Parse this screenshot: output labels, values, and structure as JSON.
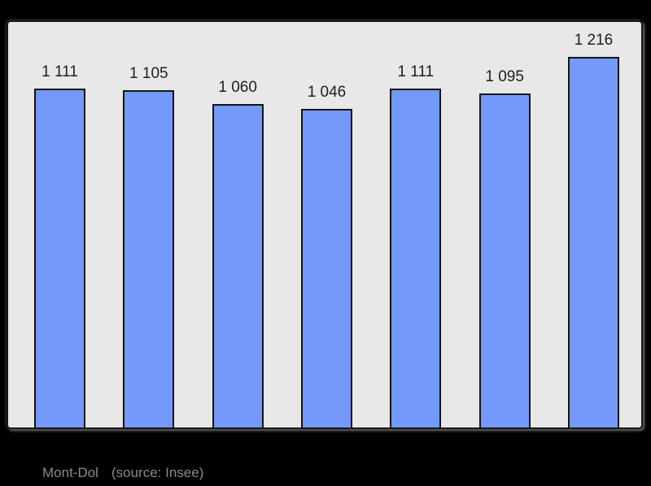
{
  "chart_data": {
    "type": "bar",
    "values": [
      1111,
      1105,
      1060,
      1046,
      1111,
      1095,
      1216
    ],
    "bar_labels": [
      "1 111",
      "1 105",
      "1 060",
      "1 046",
      "1 111",
      "1 095",
      "1 216"
    ],
    "title": "",
    "xlabel": "",
    "ylabel": "",
    "ylim": [
      0,
      1330
    ],
    "grid": false,
    "legend": null,
    "bar_color": "#7399fa",
    "bar_border_color": "#141414"
  },
  "footer": {
    "place_label": "Mont-Dol",
    "source_label": "(source: Insee)"
  },
  "colors": {
    "background": "#000000",
    "panel_background": "#e8e8e8",
    "panel_border": "#141414",
    "bar_fill": "#7399fa",
    "bar_border": "#141414",
    "label_text": "#1e1e1e",
    "footer_text": "#8a8a8a"
  }
}
